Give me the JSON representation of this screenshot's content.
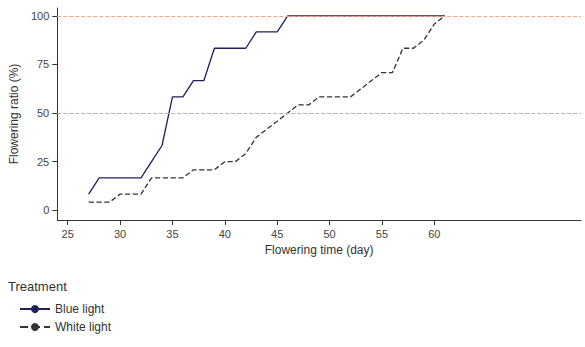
{
  "chart_data": {
    "type": "line",
    "x_label": "Flowering time (day)",
    "y_label": "Flowering ratio (%)",
    "legend_title": "Treatment",
    "legend": "bottom-left",
    "grid": false,
    "xlim": [
      24,
      74
    ],
    "xticks": [
      25,
      30,
      35,
      40,
      45,
      50,
      55,
      60
    ],
    "ylim": [
      -5,
      104
    ],
    "yticks": [
      0,
      25,
      50,
      75,
      100
    ],
    "hlines": [
      {
        "value": 100,
        "color": "#f4a582"
      },
      {
        "value": 50,
        "color": "#b0b0b0"
      }
    ],
    "series": [
      {
        "name": "Blue light",
        "color": "#1f1f5e",
        "line_style": "solid",
        "x": [
          27,
          28,
          29,
          30,
          31,
          32,
          33,
          34,
          35,
          36,
          37,
          38,
          39,
          40,
          41,
          42,
          43,
          44,
          45,
          46,
          61
        ],
        "values": [
          8.3,
          16.7,
          16.7,
          16.7,
          16.7,
          16.7,
          25,
          33.3,
          58.3,
          58.3,
          66.7,
          66.7,
          83.3,
          83.3,
          83.3,
          83.3,
          91.7,
          91.7,
          91.7,
          100,
          100
        ]
      },
      {
        "name": "White light",
        "color": "#333333",
        "line_style": "dashed",
        "x": [
          27,
          28,
          29,
          30,
          31,
          32,
          33,
          34,
          35,
          36,
          37,
          38,
          39,
          40,
          41,
          42,
          43,
          44,
          45,
          46,
          47,
          48,
          49,
          50,
          51,
          52,
          53,
          54,
          55,
          56,
          57,
          58,
          59,
          60,
          61
        ],
        "values": [
          4.2,
          4.2,
          4.2,
          8.3,
          8.3,
          8.3,
          16.7,
          16.7,
          16.7,
          16.7,
          20.8,
          20.8,
          20.8,
          25,
          25,
          29.2,
          37.5,
          41.7,
          45.8,
          50,
          54.2,
          54.2,
          58.3,
          58.3,
          58.3,
          58.3,
          62.5,
          66.7,
          70.8,
          70.8,
          83.3,
          83.3,
          87.5,
          95.8,
          100
        ]
      }
    ]
  }
}
